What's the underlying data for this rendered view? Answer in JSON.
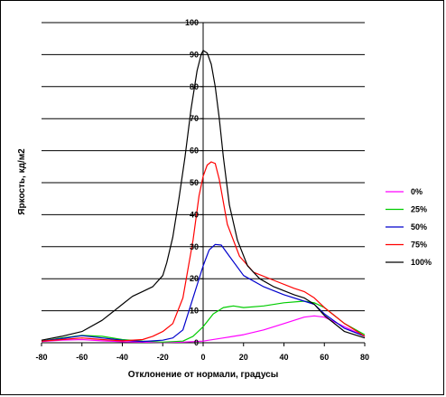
{
  "chart_data": {
    "type": "line",
    "title": "",
    "xlabel": "Отклонение от нормали, градусы",
    "ylabel": "Яркость, кд/м2",
    "xlim": [
      -80,
      80
    ],
    "ylim": [
      0,
      100
    ],
    "x_ticks": [
      -80,
      -60,
      -40,
      -20,
      0,
      20,
      40,
      60,
      80
    ],
    "y_ticks": [
      0,
      10,
      20,
      30,
      40,
      50,
      60,
      70,
      80,
      90,
      100
    ],
    "grid": "horizontal",
    "legend_position": "right",
    "series": [
      {
        "name": "0%",
        "color": "#ff00ff",
        "points": [
          [
            -80,
            0.4
          ],
          [
            -70,
            0.8
          ],
          [
            -60,
            1.0
          ],
          [
            -50,
            0.6
          ],
          [
            -40,
            0.3
          ],
          [
            -30,
            0.2
          ],
          [
            -20,
            0.1
          ],
          [
            -10,
            0.2
          ],
          [
            0,
            0.5
          ],
          [
            10,
            1.5
          ],
          [
            20,
            2.5
          ],
          [
            30,
            4.0
          ],
          [
            40,
            6.0
          ],
          [
            50,
            8.0
          ],
          [
            55,
            8.4
          ],
          [
            60,
            8.0
          ],
          [
            70,
            5.0
          ],
          [
            80,
            2.0
          ]
        ]
      },
      {
        "name": "25%",
        "color": "#00cc00",
        "points": [
          [
            -80,
            0.5
          ],
          [
            -70,
            1.5
          ],
          [
            -60,
            2.3
          ],
          [
            -50,
            2.0
          ],
          [
            -40,
            1.0
          ],
          [
            -30,
            0.5
          ],
          [
            -20,
            0.2
          ],
          [
            -10,
            0.5
          ],
          [
            -5,
            2.0
          ],
          [
            0,
            5.0
          ],
          [
            5,
            9.0
          ],
          [
            10,
            11.0
          ],
          [
            15,
            11.5
          ],
          [
            20,
            11.0
          ],
          [
            30,
            11.5
          ],
          [
            40,
            12.5
          ],
          [
            50,
            13.0
          ],
          [
            55,
            12.5
          ],
          [
            60,
            11.0
          ],
          [
            70,
            6.0
          ],
          [
            80,
            2.5
          ]
        ]
      },
      {
        "name": "50%",
        "color": "#0000cc",
        "points": [
          [
            -80,
            0.5
          ],
          [
            -70,
            1.3
          ],
          [
            -60,
            2.2
          ],
          [
            -50,
            1.5
          ],
          [
            -40,
            0.8
          ],
          [
            -30,
            0.4
          ],
          [
            -20,
            0.8
          ],
          [
            -15,
            1.5
          ],
          [
            -10,
            4.0
          ],
          [
            -5,
            14.0
          ],
          [
            0,
            24.0
          ],
          [
            3,
            29.0
          ],
          [
            6,
            30.7
          ],
          [
            9,
            30.5
          ],
          [
            13,
            27.0
          ],
          [
            20,
            21.0
          ],
          [
            30,
            17.5
          ],
          [
            40,
            15.0
          ],
          [
            50,
            13.0
          ],
          [
            55,
            12.0
          ],
          [
            60,
            9.0
          ],
          [
            70,
            4.5
          ],
          [
            80,
            2.0
          ]
        ]
      },
      {
        "name": "75%",
        "color": "#ff0000",
        "points": [
          [
            -80,
            0.5
          ],
          [
            -70,
            1.0
          ],
          [
            -60,
            1.5
          ],
          [
            -50,
            1.0
          ],
          [
            -40,
            0.6
          ],
          [
            -30,
            1.0
          ],
          [
            -25,
            2.0
          ],
          [
            -20,
            3.5
          ],
          [
            -15,
            6.0
          ],
          [
            -10,
            14.0
          ],
          [
            -5,
            32.0
          ],
          [
            -2,
            46.0
          ],
          [
            0,
            52.0
          ],
          [
            2,
            55.5
          ],
          [
            4,
            56.5
          ],
          [
            6,
            56.0
          ],
          [
            8,
            51.0
          ],
          [
            12,
            37.0
          ],
          [
            18,
            27.0
          ],
          [
            25,
            22.0
          ],
          [
            35,
            19.5
          ],
          [
            45,
            17.0
          ],
          [
            50,
            16.0
          ],
          [
            55,
            14.0
          ],
          [
            60,
            11.0
          ],
          [
            70,
            6.0
          ],
          [
            80,
            2.0
          ]
        ]
      },
      {
        "name": "100%",
        "color": "#000000",
        "points": [
          [
            -80,
            0.8
          ],
          [
            -70,
            2.0
          ],
          [
            -60,
            3.5
          ],
          [
            -50,
            7.0
          ],
          [
            -45,
            9.5
          ],
          [
            -40,
            12.0
          ],
          [
            -35,
            14.5
          ],
          [
            -30,
            16.0
          ],
          [
            -25,
            17.5
          ],
          [
            -20,
            21.0
          ],
          [
            -18,
            25.0
          ],
          [
            -15,
            33.0
          ],
          [
            -12,
            45.0
          ],
          [
            -9,
            58.0
          ],
          [
            -6,
            73.0
          ],
          [
            -3,
            85.0
          ],
          [
            -1,
            90.0
          ],
          [
            0,
            91.3
          ],
          [
            2,
            90.5
          ],
          [
            4,
            87.0
          ],
          [
            6,
            80.0
          ],
          [
            8,
            70.0
          ],
          [
            10,
            58.0
          ],
          [
            13,
            43.0
          ],
          [
            17,
            32.0
          ],
          [
            22,
            24.0
          ],
          [
            28,
            20.0
          ],
          [
            35,
            17.5
          ],
          [
            45,
            15.0
          ],
          [
            50,
            14.0
          ],
          [
            55,
            12.0
          ],
          [
            60,
            8.5
          ],
          [
            70,
            3.5
          ],
          [
            80,
            1.5
          ]
        ]
      }
    ]
  }
}
